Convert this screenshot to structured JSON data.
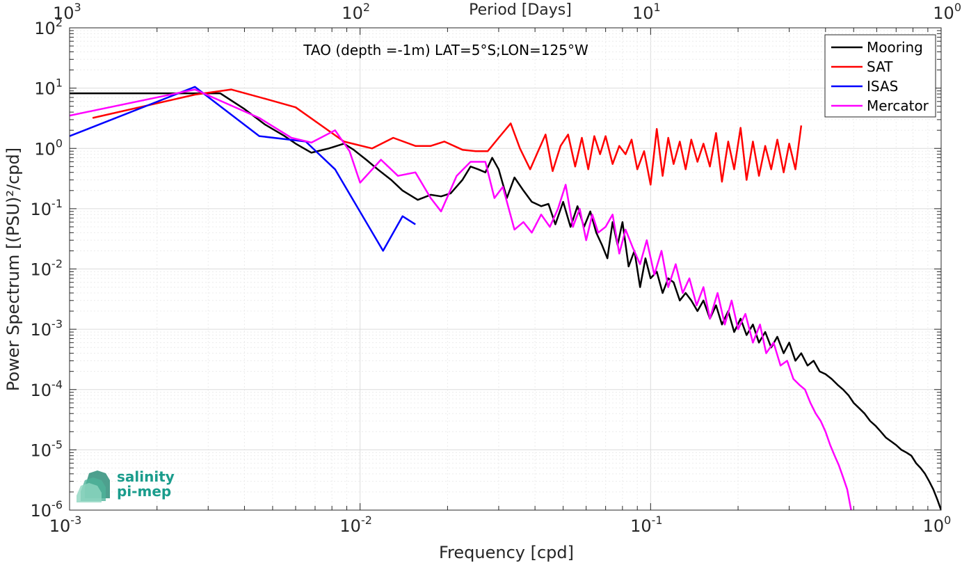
{
  "chart_data": {
    "type": "line",
    "title": "TAO (depth =-1m) LAT=5°S;LON=125°W",
    "xlabel": "Frequency [cpd]",
    "ylabel": "Power Spectrum [(PSU)²/cpd]",
    "top_xlabel": "Period [Days]",
    "x_scale": "log",
    "y_scale": "log",
    "xlim": [
      0.001,
      1
    ],
    "ylim": [
      1e-06,
      100
    ],
    "x_ticks": [
      {
        "base": "10",
        "exp": "-3"
      },
      {
        "base": "10",
        "exp": "-2"
      },
      {
        "base": "10",
        "exp": "-1"
      },
      {
        "base": "10",
        "exp": "0"
      }
    ],
    "top_ticks": [
      {
        "base": "10",
        "exp": "3"
      },
      {
        "base": "10",
        "exp": "2"
      },
      {
        "base": "10",
        "exp": "1"
      },
      {
        "base": "10",
        "exp": "0"
      }
    ],
    "y_ticks": [
      {
        "base": "10",
        "exp": "2"
      },
      {
        "base": "10",
        "exp": "1"
      },
      {
        "base": "10",
        "exp": "0"
      },
      {
        "base": "10",
        "exp": "-1"
      },
      {
        "base": "10",
        "exp": "-2"
      },
      {
        "base": "10",
        "exp": "-3"
      },
      {
        "base": "10",
        "exp": "-4"
      },
      {
        "base": "10",
        "exp": "-5"
      },
      {
        "base": "10",
        "exp": "-6"
      }
    ],
    "grid": true,
    "legend_position": "top-right",
    "series": [
      {
        "name": "Mooring",
        "color": "#000000",
        "x": [
          0.001,
          0.0013,
          0.0017,
          0.0022,
          0.0027,
          0.0033,
          0.004,
          0.0047,
          0.0055,
          0.006,
          0.0068,
          0.0078,
          0.0088,
          0.0095,
          0.0105,
          0.0115,
          0.0128,
          0.014,
          0.0158,
          0.0175,
          0.019,
          0.0205,
          0.0225,
          0.024,
          0.0255,
          0.027,
          0.0285,
          0.03,
          0.032,
          0.034,
          0.0365,
          0.039,
          0.042,
          0.0445,
          0.047,
          0.05,
          0.053,
          0.056,
          0.059,
          0.062,
          0.065,
          0.068,
          0.071,
          0.074,
          0.077,
          0.08,
          0.084,
          0.088,
          0.092,
          0.096,
          0.1,
          0.105,
          0.11,
          0.115,
          0.12,
          0.126,
          0.132,
          0.138,
          0.145,
          0.152,
          0.16,
          0.168,
          0.176,
          0.185,
          0.194,
          0.204,
          0.214,
          0.225,
          0.236,
          0.248,
          0.26,
          0.273,
          0.287,
          0.3,
          0.315,
          0.33,
          0.347,
          0.364,
          0.382,
          0.4,
          0.42,
          0.44,
          0.46,
          0.48,
          0.5,
          0.52,
          0.545,
          0.57,
          0.595,
          0.62,
          0.645,
          0.67,
          0.7,
          0.73,
          0.76,
          0.79,
          0.82,
          0.85,
          0.88,
          0.91,
          0.94,
          0.97,
          1.0
        ],
        "y": [
          8.2,
          8.2,
          8.2,
          8.2,
          8.2,
          8.2,
          4.5,
          2.5,
          1.6,
          1.2,
          0.85,
          1.0,
          1.2,
          0.95,
          0.65,
          0.45,
          0.3,
          0.2,
          0.14,
          0.17,
          0.16,
          0.18,
          0.3,
          0.5,
          0.45,
          0.4,
          0.7,
          0.45,
          0.15,
          0.33,
          0.2,
          0.13,
          0.11,
          0.12,
          0.055,
          0.13,
          0.05,
          0.11,
          0.05,
          0.09,
          0.04,
          0.025,
          0.015,
          0.06,
          0.025,
          0.06,
          0.011,
          0.02,
          0.005,
          0.015,
          0.007,
          0.009,
          0.004,
          0.007,
          0.006,
          0.003,
          0.004,
          0.003,
          0.002,
          0.003,
          0.0015,
          0.0025,
          0.0012,
          0.002,
          0.0009,
          0.0015,
          0.0008,
          0.0012,
          0.0006,
          0.0009,
          0.0005,
          0.00075,
          0.0004,
          0.0006,
          0.0003,
          0.0004,
          0.00025,
          0.0003,
          0.0002,
          0.00018,
          0.00015,
          0.00012,
          0.0001,
          8e-05,
          6e-05,
          5e-05,
          4e-05,
          3e-05,
          2.5e-05,
          2e-05,
          1.6e-05,
          1.4e-05,
          1.2e-05,
          1e-05,
          9e-06,
          8e-06,
          6e-06,
          5e-06,
          4e-06,
          3e-06,
          2.2e-06,
          1.5e-06,
          1e-06
        ]
      },
      {
        "name": "SAT",
        "color": "#ff0000",
        "x": [
          0.0012,
          0.0027,
          0.0036,
          0.0048,
          0.006,
          0.0088,
          0.011,
          0.013,
          0.0155,
          0.0175,
          0.0195,
          0.0225,
          0.025,
          0.0275,
          0.03,
          0.033,
          0.0355,
          0.0385,
          0.041,
          0.0435,
          0.046,
          0.049,
          0.052,
          0.055,
          0.058,
          0.061,
          0.064,
          0.067,
          0.07,
          0.074,
          0.078,
          0.082,
          0.086,
          0.09,
          0.095,
          0.1,
          0.105,
          0.11,
          0.115,
          0.12,
          0.126,
          0.132,
          0.138,
          0.145,
          0.152,
          0.16,
          0.168,
          0.176,
          0.185,
          0.194,
          0.204,
          0.214,
          0.225,
          0.236,
          0.248,
          0.26,
          0.273,
          0.287,
          0.3,
          0.315,
          0.33
        ],
        "y": [
          3.2,
          7.8,
          9.5,
          6.5,
          4.8,
          1.3,
          1.0,
          1.5,
          1.1,
          1.1,
          1.3,
          0.95,
          0.9,
          0.9,
          1.5,
          2.6,
          1.0,
          0.45,
          0.9,
          1.7,
          0.42,
          1.1,
          1.7,
          0.5,
          1.5,
          0.45,
          1.6,
          0.8,
          1.6,
          0.55,
          1.1,
          0.8,
          1.4,
          0.45,
          0.9,
          0.25,
          2.1,
          0.35,
          1.5,
          0.55,
          1.3,
          0.45,
          1.4,
          0.6,
          1.2,
          0.5,
          1.8,
          0.28,
          1.3,
          0.45,
          2.2,
          0.3,
          1.3,
          0.35,
          1.1,
          0.45,
          1.4,
          0.4,
          1.2,
          0.45,
          2.4
        ]
      },
      {
        "name": "ISAS",
        "color": "#0000ff",
        "x": [
          0.001,
          0.0027,
          0.0045,
          0.0065,
          0.0082,
          0.012,
          0.014,
          0.0155
        ],
        "y": [
          1.6,
          10.5,
          1.6,
          1.3,
          0.45,
          0.02,
          0.075,
          0.055
        ]
      },
      {
        "name": "Mercator",
        "color": "#ff00ff",
        "x": [
          0.001,
          0.0027,
          0.0045,
          0.0058,
          0.0068,
          0.0082,
          0.0092,
          0.01,
          0.0118,
          0.0135,
          0.0155,
          0.0175,
          0.019,
          0.0215,
          0.024,
          0.027,
          0.029,
          0.031,
          0.034,
          0.0365,
          0.039,
          0.042,
          0.045,
          0.048,
          0.051,
          0.054,
          0.057,
          0.06,
          0.063,
          0.066,
          0.07,
          0.074,
          0.078,
          0.082,
          0.087,
          0.092,
          0.097,
          0.103,
          0.109,
          0.115,
          0.122,
          0.129,
          0.136,
          0.144,
          0.152,
          0.16,
          0.17,
          0.18,
          0.19,
          0.2,
          0.212,
          0.225,
          0.238,
          0.25,
          0.265,
          0.28,
          0.295,
          0.31,
          0.325,
          0.34,
          0.355,
          0.37,
          0.385,
          0.4,
          0.415,
          0.43,
          0.445,
          0.46,
          0.475,
          0.49
        ],
        "y": [
          3.5,
          9.5,
          3.2,
          1.5,
          1.25,
          2.0,
          0.9,
          0.27,
          0.65,
          0.35,
          0.4,
          0.15,
          0.09,
          0.35,
          0.6,
          0.6,
          0.15,
          0.23,
          0.045,
          0.06,
          0.04,
          0.08,
          0.05,
          0.1,
          0.25,
          0.05,
          0.1,
          0.03,
          0.08,
          0.04,
          0.05,
          0.08,
          0.018,
          0.045,
          0.022,
          0.012,
          0.03,
          0.008,
          0.02,
          0.005,
          0.012,
          0.004,
          0.007,
          0.0025,
          0.005,
          0.0015,
          0.004,
          0.0012,
          0.003,
          0.001,
          0.0018,
          0.0006,
          0.0012,
          0.0004,
          0.0006,
          0.00025,
          0.0003,
          0.00015,
          0.00012,
          0.0001,
          6e-05,
          4e-05,
          3e-05,
          2e-05,
          1.2e-05,
          8e-06,
          5.5e-06,
          3.5e-06,
          2.2e-06,
          1e-06
        ]
      }
    ]
  },
  "logo": {
    "line1": "salinity",
    "line2": "pi-mep",
    "color": "#1a9c8c"
  }
}
